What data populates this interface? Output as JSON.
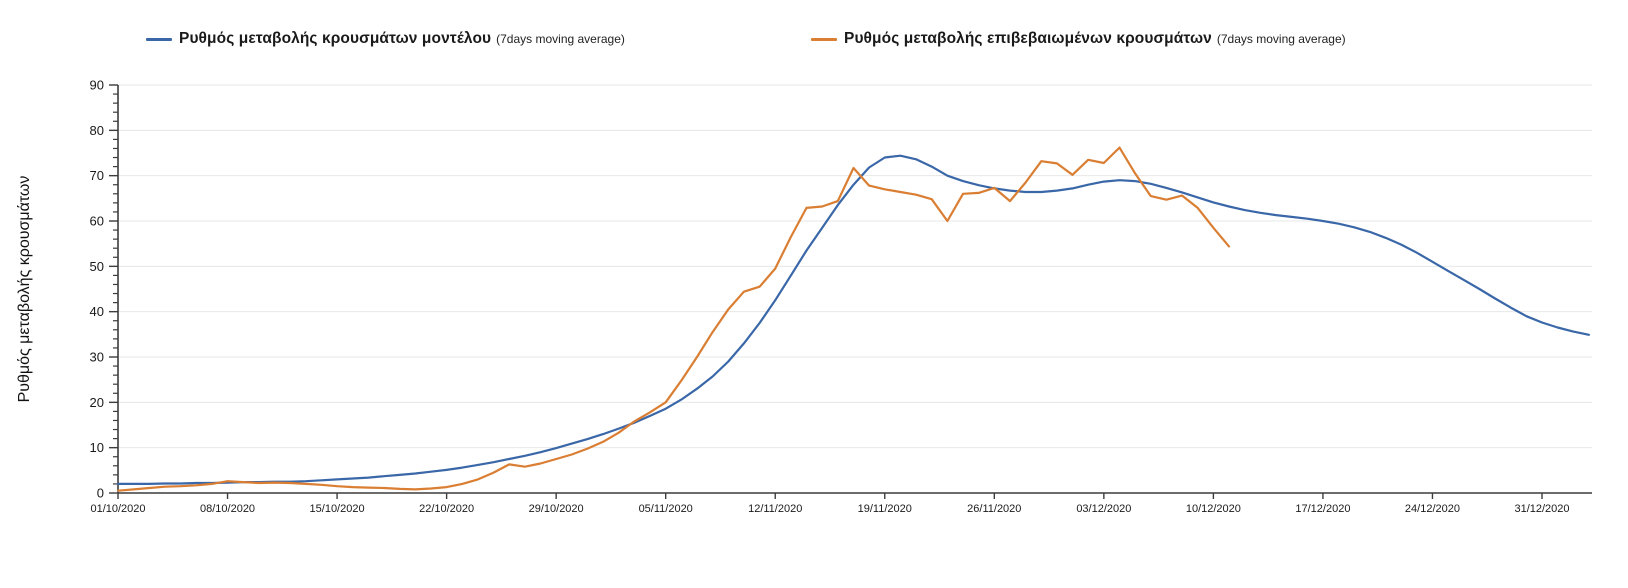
{
  "page": {
    "background": "#ffffff"
  },
  "legend": {
    "items": [
      {
        "label": "Ρυθμός μεταβολής κρουσμάτων μοντέλου",
        "suffix": "(7days moving average)",
        "color": "#3A67A8"
      },
      {
        "label": "Ρυθμός μεταβολής επιβεβαιωμένων κρουσμάτων",
        "suffix": "(7days moving average)",
        "color": "#D97E32"
      }
    ]
  },
  "chart_data": {
    "type": "line",
    "title": "",
    "xlabel": "",
    "ylabel": "Ρυθμός μεταβολής κρουσμάτων",
    "ylim": [
      0,
      90
    ],
    "ytick_step": 10,
    "y_minor_tick_step": 2,
    "grid": "horizontal gridlines every 10, light gray",
    "legend_position": "top",
    "x_start_date": "01/10/2020",
    "x_cadence": "daily",
    "xtick_days": [
      0,
      7,
      14,
      21,
      28,
      35,
      42,
      49,
      56,
      63,
      70,
      77,
      84,
      91
    ],
    "xtick_labels": [
      "01/10/2020",
      "08/10/2020",
      "15/10/2020",
      "22/10/2020",
      "29/10/2020",
      "05/11/2020",
      "12/11/2020",
      "19/11/2020",
      "26/11/2020",
      "03/12/2020",
      "10/12/2020",
      "17/12/2020",
      "24/12/2020",
      "31/12/2020"
    ],
    "axis_color": "#3c3c3c",
    "gridline_color": "#e7e7e7",
    "series": [
      {
        "name": "Ρυθμός μεταβολής κρουσμάτων μοντέλου (7days moving average)",
        "color": "#3A67A8",
        "start_day": 0,
        "values": [
          2.0,
          2.0,
          2.0,
          2.1,
          2.1,
          2.2,
          2.2,
          2.3,
          2.4,
          2.4,
          2.5,
          2.5,
          2.6,
          2.8,
          3.0,
          3.2,
          3.4,
          3.7,
          4.0,
          4.3,
          4.7,
          5.1,
          5.6,
          6.2,
          6.8,
          7.5,
          8.2,
          9.0,
          9.9,
          10.9,
          11.9,
          13.0,
          14.2,
          15.5,
          17.0,
          18.6,
          20.6,
          23.0,
          25.7,
          29.0,
          33.0,
          37.5,
          42.5,
          48.0,
          53.5,
          58.5,
          63.5,
          68.0,
          71.8,
          74.0,
          74.4,
          73.6,
          72.0,
          70.0,
          68.8,
          67.9,
          67.2,
          66.7,
          66.4,
          66.4,
          66.7,
          67.2,
          68.0,
          68.7,
          69.0,
          68.8,
          68.2,
          67.3,
          66.3,
          65.2,
          64.1,
          63.2,
          62.4,
          61.8,
          61.3,
          60.9,
          60.5,
          60.0,
          59.4,
          58.6,
          57.6,
          56.3,
          54.8,
          53.0,
          51.0,
          49.0,
          47.0,
          45.0,
          42.9,
          40.9,
          39.0,
          37.6,
          36.5,
          35.6,
          34.9
        ]
      },
      {
        "name": "Ρυθμός μεταβολής επιβεβαιωμένων κρουσμάτων (7days moving average)",
        "color": "#D97E32",
        "start_day": 0,
        "values": [
          0.5,
          0.8,
          1.1,
          1.4,
          1.5,
          1.7,
          2.0,
          2.6,
          2.4,
          2.2,
          2.3,
          2.2,
          2.0,
          1.8,
          1.5,
          1.3,
          1.2,
          1.1,
          0.9,
          0.8,
          1.0,
          1.3,
          2.0,
          3.0,
          4.5,
          6.3,
          5.8,
          6.5,
          7.5,
          8.5,
          9.8,
          11.3,
          13.3,
          15.8,
          17.8,
          20.0,
          24.8,
          30.0,
          35.5,
          40.5,
          44.4,
          45.5,
          49.5,
          56.5,
          62.9,
          63.2,
          64.4,
          71.7,
          67.8,
          67.0,
          66.4,
          65.8,
          64.8,
          60.0,
          66.0,
          66.2,
          67.3,
          64.4,
          68.5,
          73.2,
          72.7,
          70.2,
          73.5,
          72.8,
          76.2,
          70.5,
          65.5,
          64.7,
          65.6,
          62.9,
          58.5,
          54.4
        ]
      }
    ]
  }
}
